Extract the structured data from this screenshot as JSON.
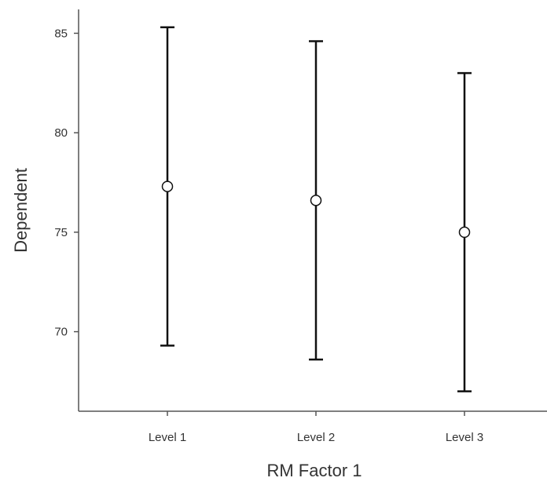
{
  "chart_data": {
    "type": "scatter",
    "title": "",
    "xlabel": "RM Factor 1",
    "ylabel": "Dependent",
    "categories": [
      "Level 1",
      "Level 2",
      "Level 3"
    ],
    "series": [
      {
        "values": [
          77.3,
          76.6,
          75.0
        ],
        "error_low": [
          69.3,
          68.6,
          67.0
        ],
        "error_high": [
          85.3,
          84.6,
          83.0
        ]
      }
    ],
    "ylim": [
      66.0,
      86.2
    ],
    "yticks": [
      70,
      75,
      80,
      85
    ],
    "grid": false,
    "legend": "none",
    "colors": {
      "axis": "#555555",
      "error_bar": "#111111",
      "marker_fill": "#ffffff",
      "marker_stroke": "#111111",
      "text": "#333333"
    }
  }
}
